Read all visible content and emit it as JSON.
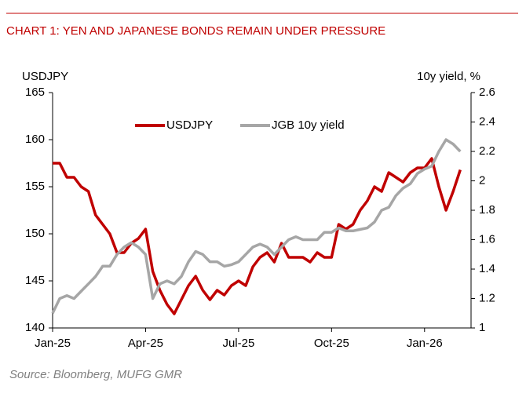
{
  "chart_data": {
    "type": "line",
    "title": "CHART 1: YEN AND JAPANESE BONDS REMAIN UNDER PRESSURE",
    "y_label": "USDJPY",
    "y2_label": "10y yield, %",
    "source": "Source: Bloomberg, MUFG GMR",
    "categories": [
      "Jan-25",
      null,
      null,
      null,
      null,
      null,
      null,
      null,
      null,
      null,
      null,
      null,
      null,
      "Apr-25",
      null,
      null,
      null,
      null,
      null,
      null,
      null,
      null,
      null,
      null,
      null,
      null,
      "Jul-25",
      null,
      null,
      null,
      null,
      null,
      null,
      null,
      null,
      null,
      null,
      null,
      null,
      "Oct-25",
      null,
      null,
      null,
      null,
      null,
      null,
      null,
      null,
      null,
      null,
      null,
      null,
      "Jan-26",
      null,
      null,
      null,
      null,
      null
    ],
    "series": [
      {
        "name": "USDJPY",
        "color": "#c00000",
        "axis": "y",
        "values": [
          157.5,
          157.5,
          156,
          156,
          155,
          154.5,
          152,
          151,
          150,
          148,
          148,
          149,
          149.5,
          150.5,
          146,
          144,
          142.5,
          141.5,
          143,
          144.5,
          145.5,
          144,
          143,
          144,
          143.5,
          144.5,
          145,
          144.5,
          146.5,
          147.5,
          148,
          147,
          149,
          147.5,
          147.5,
          147.5,
          147,
          148,
          147.5,
          147.5,
          151,
          150.5,
          151,
          152.5,
          153.5,
          155,
          154.5,
          156.5,
          156,
          155.5,
          156.5,
          157,
          157,
          158,
          155,
          152.5,
          154.5,
          156.8
        ]
      },
      {
        "name": "JGB 10y yield",
        "color": "#a6a6a6",
        "axis": "y2",
        "values": [
          1.1,
          1.2,
          1.22,
          1.2,
          1.25,
          1.3,
          1.35,
          1.42,
          1.42,
          1.5,
          1.55,
          1.58,
          1.55,
          1.5,
          1.2,
          1.3,
          1.32,
          1.3,
          1.35,
          1.45,
          1.52,
          1.5,
          1.45,
          1.45,
          1.42,
          1.43,
          1.45,
          1.5,
          1.55,
          1.57,
          1.55,
          1.5,
          1.55,
          1.6,
          1.62,
          1.6,
          1.6,
          1.6,
          1.65,
          1.65,
          1.68,
          1.66,
          1.66,
          1.67,
          1.68,
          1.72,
          1.8,
          1.82,
          1.9,
          1.95,
          1.98,
          2.05,
          2.08,
          2.1,
          2.2,
          2.28,
          2.25,
          2.2
        ]
      }
    ],
    "ylim": [
      140,
      165
    ],
    "yticks": [
      140,
      145,
      150,
      155,
      160,
      165
    ],
    "y2lim": [
      1,
      2.6
    ],
    "y2ticks": [
      1,
      1.2,
      1.4,
      1.6,
      1.8,
      2,
      2.2,
      2.4,
      2.6
    ],
    "legend": "top"
  }
}
